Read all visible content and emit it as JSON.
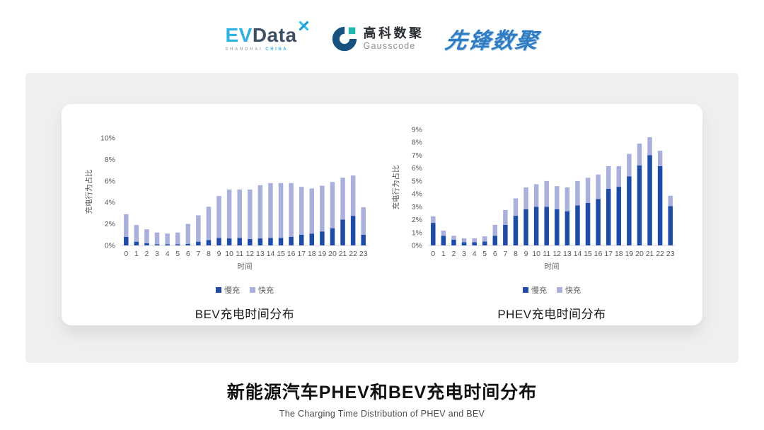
{
  "header": {
    "logos": {
      "evdata": {
        "ev": "EV",
        "data": "Data",
        "sub_left": "SHANGHAI",
        "sub_right": "CHINA"
      },
      "gausscode": {
        "cn": "高科数聚",
        "en": "Gausscode"
      },
      "pioneer": {
        "text": "先锋数聚"
      }
    }
  },
  "chart_data": [
    {
      "type": "bar",
      "stacked": true,
      "title": "BEV充电时间分布",
      "categories": [
        0,
        1,
        2,
        3,
        4,
        5,
        6,
        7,
        8,
        9,
        10,
        11,
        12,
        13,
        14,
        15,
        16,
        17,
        18,
        19,
        20,
        21,
        22,
        23
      ],
      "series": [
        {
          "name": "慢充",
          "values": [
            0.8,
            0.35,
            0.2,
            0.1,
            0.1,
            0.1,
            0.15,
            0.35,
            0.5,
            0.7,
            0.65,
            0.7,
            0.6,
            0.65,
            0.7,
            0.7,
            0.8,
            1.0,
            1.1,
            1.3,
            1.6,
            2.4,
            2.75,
            1.0
          ]
        },
        {
          "name": "快充",
          "values": [
            2.1,
            1.55,
            1.3,
            1.1,
            1.0,
            1.1,
            1.85,
            2.45,
            3.1,
            3.9,
            4.55,
            4.5,
            4.6,
            4.95,
            5.1,
            5.1,
            5.0,
            4.45,
            4.2,
            4.25,
            4.3,
            3.9,
            3.75,
            2.55
          ]
        }
      ],
      "xlabel": "时间",
      "ylabel": "充电行为占比",
      "ylim": [
        0,
        10
      ],
      "ytick_step": 2,
      "ytick_suffix": "%",
      "grid": false,
      "legend_position": "bottom",
      "colors": [
        "#1E4BA5",
        "#A9B0DB"
      ]
    },
    {
      "type": "bar",
      "stacked": true,
      "title": "PHEV充电时间分布",
      "categories": [
        0,
        1,
        2,
        3,
        4,
        5,
        6,
        7,
        8,
        9,
        10,
        11,
        12,
        13,
        14,
        15,
        16,
        17,
        18,
        19,
        20,
        21,
        22,
        23
      ],
      "series": [
        {
          "name": "慢充",
          "values": [
            1.75,
            0.75,
            0.45,
            0.25,
            0.25,
            0.3,
            0.75,
            1.6,
            2.3,
            2.8,
            3.0,
            3.0,
            2.8,
            2.65,
            3.1,
            3.3,
            3.6,
            4.4,
            4.55,
            5.35,
            6.2,
            7.0,
            6.15,
            3.05
          ]
        },
        {
          "name": "快充",
          "values": [
            0.5,
            0.4,
            0.3,
            0.3,
            0.3,
            0.4,
            0.85,
            1.15,
            1.35,
            1.7,
            1.75,
            2.0,
            1.8,
            1.85,
            1.9,
            1.95,
            1.9,
            1.75,
            1.6,
            1.75,
            1.7,
            1.4,
            1.2,
            0.8
          ]
        }
      ],
      "xlabel": "时间",
      "ylabel": "充电行为占比",
      "ylim": [
        0,
        9
      ],
      "ytick_step": 1,
      "ytick_suffix": "%",
      "grid": false,
      "legend_position": "bottom",
      "colors": [
        "#1E4BA5",
        "#A9B0DB"
      ]
    }
  ],
  "footer": {
    "title": "新能源汽车PHEV和BEV充电时间分布",
    "subtitle": "The Charging Time Distribution of PHEV and BEV"
  }
}
